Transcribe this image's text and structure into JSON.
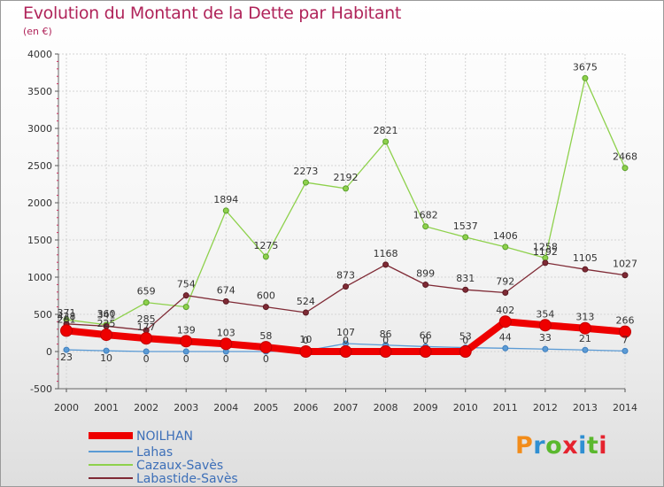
{
  "title": "Evolution du Montant de la Dette par Habitant",
  "subtitle": "(en €)",
  "logo": {
    "text": "Proxiti",
    "colors": [
      "#f28c1a",
      "#2f8fd2",
      "#5ab82e",
      "#e5232e",
      "#2f8fd2",
      "#5ab82e",
      "#e5232e"
    ]
  },
  "chart_data": {
    "type": "line",
    "x": [
      2000,
      2001,
      2002,
      2003,
      2004,
      2005,
      2006,
      2007,
      2008,
      2009,
      2010,
      2011,
      2012,
      2013,
      2014
    ],
    "ylim": [
      -500,
      4000
    ],
    "yticks": [
      -500,
      0,
      500,
      1000,
      1500,
      2000,
      2500,
      3000,
      3500,
      4000
    ],
    "grid": true,
    "legend_position": "bottom-left",
    "series": [
      {
        "name": "NOILHAN",
        "color": "#ee0000",
        "values": [
          281,
          225,
          177,
          139,
          103,
          58,
          0,
          0,
          0,
          0,
          0,
          402,
          354,
          313,
          266
        ],
        "labels": [
          "281",
          "225",
          "177",
          "139",
          "103",
          "58",
          "0",
          "0",
          "0",
          "0",
          "0",
          "402",
          "354",
          "313",
          "266"
        ]
      },
      {
        "name": "Lahas",
        "color": "#5b9bd5",
        "values": [
          23,
          10,
          0,
          0,
          0,
          0,
          10,
          107,
          86,
          66,
          53,
          44,
          33,
          21,
          7
        ],
        "labels": [
          "23",
          "10",
          "0",
          "0",
          "0",
          "0",
          "10",
          "107",
          "86",
          "66",
          "53",
          "44",
          "33",
          "21",
          "7"
        ]
      },
      {
        "name": "Cazaux-Savès",
        "color": "#8ed14c",
        "values": [
          428,
          360,
          659,
          600,
          1894,
          1275,
          2273,
          2192,
          2821,
          1682,
          1537,
          1406,
          1258,
          3675,
          2468
        ],
        "labels": [
          "428",
          "360",
          "659",
          "",
          "1894",
          "1275",
          "2273",
          "2192",
          "2821",
          "1682",
          "1537",
          "1406",
          "1258",
          "3675",
          "2468"
        ]
      },
      {
        "name": "Labastide-Savès",
        "color": "#7f2a35",
        "values": [
          371,
          341,
          285,
          754,
          674,
          600,
          524,
          873,
          1168,
          899,
          831,
          792,
          1192,
          1105,
          1027
        ],
        "labels": [
          "371",
          "341",
          "285",
          "754",
          "674",
          "600",
          "524",
          "873",
          "1168",
          "899",
          "831",
          "792",
          "1192",
          "1105",
          "1027"
        ]
      }
    ]
  }
}
